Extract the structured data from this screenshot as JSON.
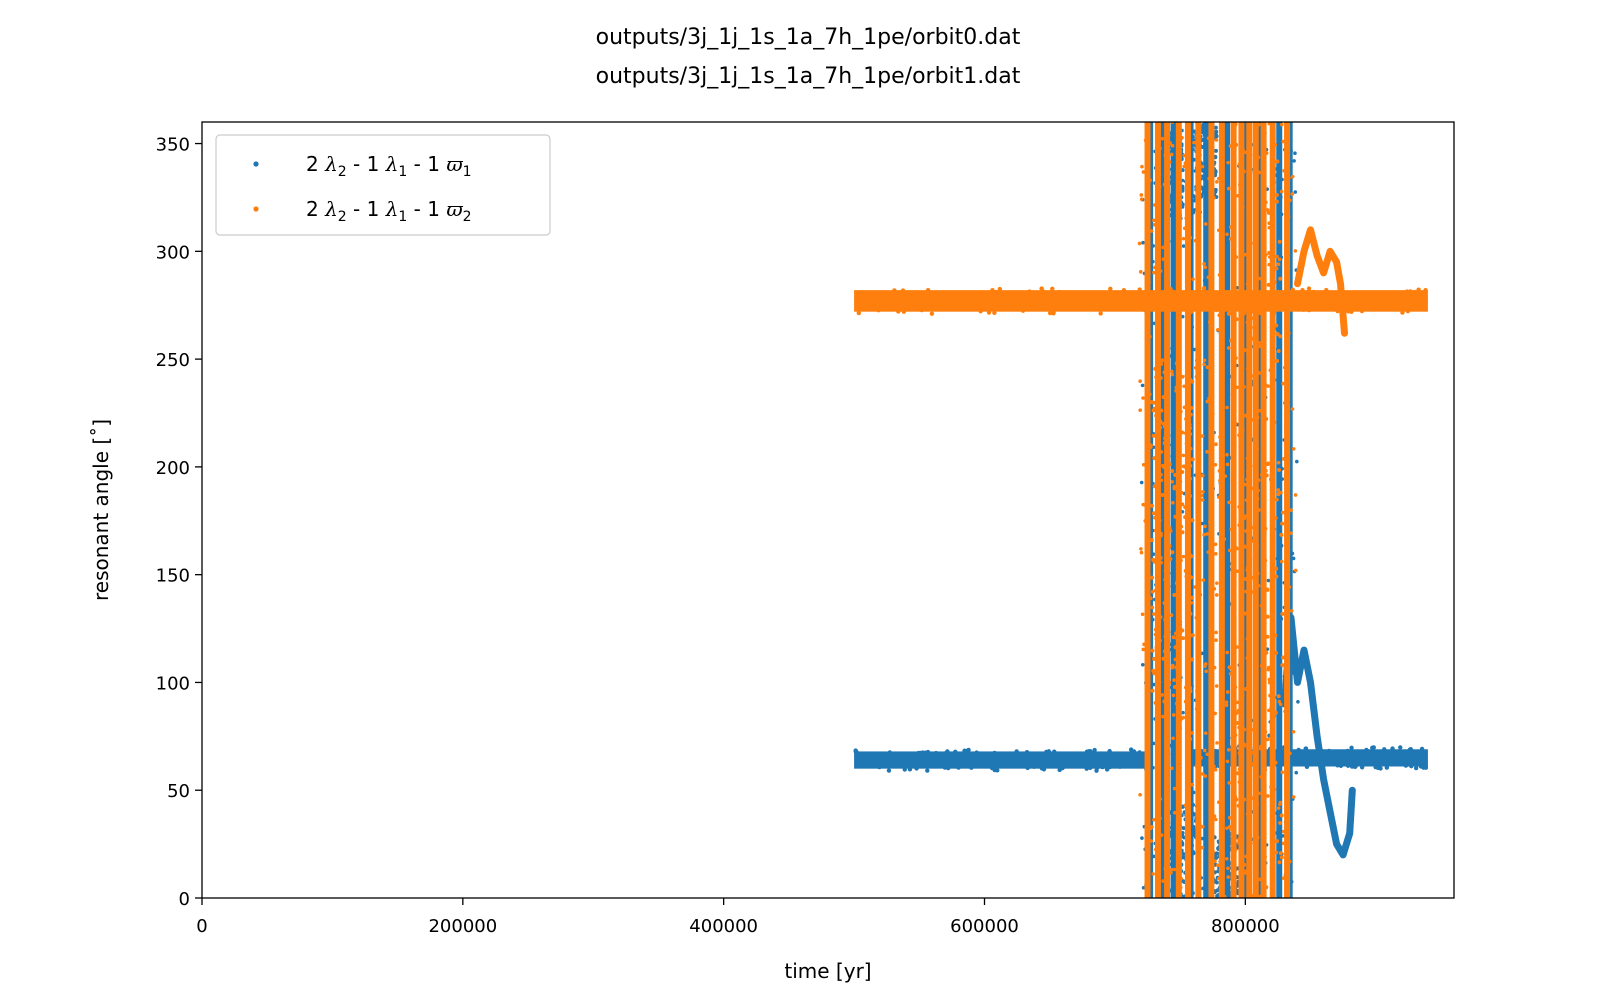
{
  "chart_data": {
    "type": "scatter",
    "title_lines": [
      "outputs/3j_1j_1s_1a_7h_1pe/orbit0.dat",
      "outputs/3j_1j_1s_1a_7h_1pe/orbit1.dat"
    ],
    "xlabel": "time [yr]",
    "ylabel": "resonant angle [˚]",
    "xlim": [
      0,
      960000
    ],
    "ylim": [
      0,
      360
    ],
    "xticks": [
      0,
      200000,
      400000,
      600000,
      800000
    ],
    "yticks": [
      0,
      50,
      100,
      150,
      200,
      250,
      300,
      350
    ],
    "grid": false,
    "legend_placement": "top-left",
    "series": [
      {
        "name": "2 λ2 - 1 λ1 - 1 ϖ1",
        "legend_parts": {
          "c1": "2 ",
          "sym1": "λ",
          "sub1": "2",
          "mid1": " - 1 ",
          "sym2": "λ",
          "sub2": "1",
          "mid2": " - 1 ",
          "sym3": "ϖ",
          "sub3": "1"
        },
        "color": "#1f77b4",
        "bands": [
          {
            "x": [
              500000,
              725000
            ],
            "y": [
              60,
              68
            ]
          },
          {
            "x": [
              755000,
              940000
            ],
            "y": [
              61,
              69
            ]
          }
        ],
        "spikes": [
          {
            "x": 727000,
            "y": [
              0,
              360
            ]
          },
          {
            "x": 736000,
            "y": [
              0,
              360
            ]
          },
          {
            "x": 745000,
            "y": [
              0,
              360
            ]
          },
          {
            "x": 758000,
            "y": [
              0,
              360
            ]
          },
          {
            "x": 770000,
            "y": [
              0,
              360
            ]
          },
          {
            "x": 786000,
            "y": [
              0,
              360
            ]
          },
          {
            "x": 800000,
            "y": [
              0,
              360
            ]
          },
          {
            "x": 812000,
            "y": [
              0,
              360
            ]
          },
          {
            "x": 826000,
            "y": [
              0,
              360
            ]
          },
          {
            "x": 834000,
            "y": [
              0,
              360
            ]
          }
        ],
        "curve": [
          [
            830000,
            90
          ],
          [
            835000,
            130
          ],
          [
            840000,
            100
          ],
          [
            845000,
            115
          ],
          [
            850000,
            100
          ],
          [
            855000,
            75
          ],
          [
            860000,
            55
          ],
          [
            865000,
            40
          ],
          [
            870000,
            25
          ],
          [
            875000,
            20
          ],
          [
            880000,
            30
          ],
          [
            882000,
            50
          ]
        ],
        "clusters": [
          {
            "x": [
              738000,
              752000
            ],
            "y": [
              315,
              355
            ]
          },
          {
            "x": [
              760000,
              778000
            ],
            "y": [
              325,
              360
            ]
          },
          {
            "x": [
              735000,
              765000
            ],
            "y": [
              0,
              45
            ]
          },
          {
            "x": [
              770000,
              795000
            ],
            "y": [
              0,
              30
            ]
          }
        ]
      },
      {
        "name": "2 λ2 - 1 λ1 - 1 ϖ2",
        "legend_parts": {
          "c1": "2 ",
          "sym1": "λ",
          "sub1": "2",
          "mid1": " - 1 ",
          "sym2": "λ",
          "sub2": "1",
          "mid2": " - 1 ",
          "sym3": "ϖ",
          "sub3": "2"
        },
        "color": "#ff7f0e",
        "bands": [
          {
            "x": [
              500000,
              940000
            ],
            "y": [
              272,
              282
            ]
          }
        ],
        "spikes": [
          {
            "x": 725000,
            "y": [
              0,
              360
            ]
          },
          {
            "x": 733000,
            "y": [
              0,
              360
            ]
          },
          {
            "x": 740000,
            "y": [
              0,
              360
            ]
          },
          {
            "x": 749000,
            "y": [
              0,
              360
            ]
          },
          {
            "x": 756000,
            "y": [
              0,
              360
            ]
          },
          {
            "x": 764000,
            "y": [
              0,
              360
            ]
          },
          {
            "x": 774000,
            "y": [
              0,
              360
            ]
          },
          {
            "x": 782000,
            "y": [
              0,
              360
            ]
          },
          {
            "x": 791000,
            "y": [
              0,
              360
            ]
          },
          {
            "x": 797000,
            "y": [
              0,
              360
            ]
          },
          {
            "x": 803000,
            "y": [
              0,
              360
            ]
          },
          {
            "x": 808000,
            "y": [
              0,
              360
            ]
          },
          {
            "x": 814000,
            "y": [
              0,
              360
            ]
          },
          {
            "x": 821000,
            "y": [
              0,
              360
            ]
          },
          {
            "x": 832000,
            "y": [
              0,
              360
            ]
          }
        ],
        "curve": [
          [
            840000,
            285
          ],
          [
            845000,
            300
          ],
          [
            850000,
            310
          ],
          [
            855000,
            298
          ],
          [
            860000,
            290
          ],
          [
            865000,
            300
          ],
          [
            870000,
            295
          ],
          [
            873000,
            285
          ],
          [
            876000,
            262
          ]
        ],
        "clusters": [
          {
            "x": [
              728000,
              760000
            ],
            "y": [
              90,
              250
            ]
          },
          {
            "x": [
              790000,
              830000
            ],
            "y": [
              0,
              360
            ]
          }
        ]
      }
    ]
  }
}
